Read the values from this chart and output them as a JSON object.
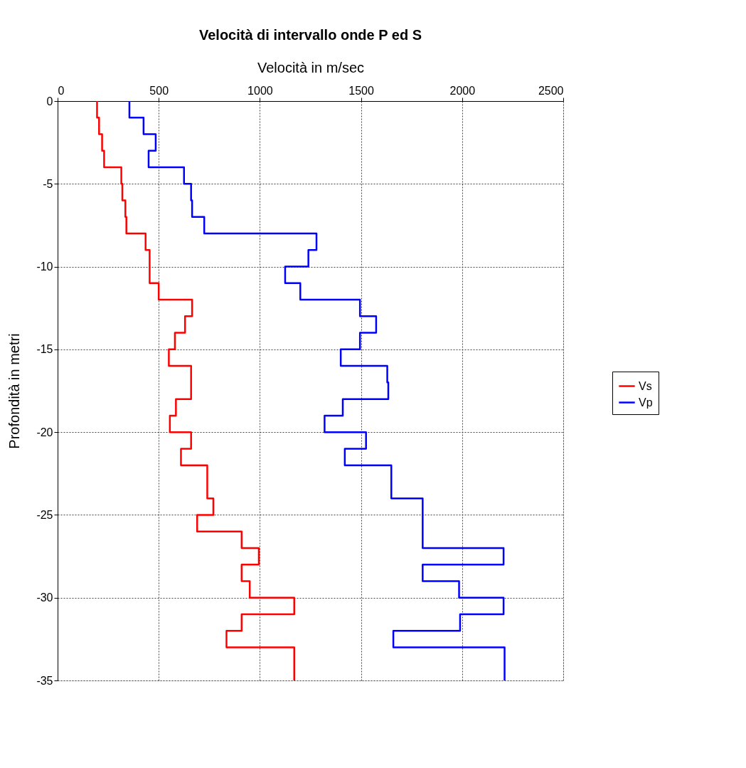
{
  "chart_data": {
    "type": "line",
    "title": "Velocità di intervallo onde P ed S",
    "xlabel": "Velocità in m/sec",
    "ylabel": "Profondità in metri",
    "xlim": [
      0,
      2500
    ],
    "xticks": [
      0,
      500,
      1000,
      1500,
      2000,
      2500
    ],
    "ylim": [
      -35,
      0
    ],
    "yticks": [
      0,
      -5,
      -10,
      -15,
      -20,
      -25,
      -30,
      -35
    ],
    "grid": true,
    "legend": "right",
    "marker": "none",
    "line_style": "solid",
    "series": [
      {
        "name": "Vs",
        "color": "#ff0000",
        "x": [
          195,
          195,
          205,
          205,
          220,
          220,
          230,
          230,
          315,
          315,
          320,
          320,
          335,
          335,
          340,
          340,
          435,
          435,
          455,
          455,
          455,
          455,
          500,
          500,
          665,
          665,
          630,
          630,
          580,
          580,
          550,
          550,
          660,
          660,
          660,
          660,
          585,
          585,
          555,
          555,
          660,
          660,
          610,
          610,
          740,
          740,
          740,
          740,
          770,
          770,
          690,
          690,
          910,
          910,
          995,
          995,
          910,
          910,
          950,
          950,
          1170,
          1170,
          910,
          910,
          835,
          835,
          1170,
          1170,
          1170,
          1170
        ],
        "values": [
          0,
          -1,
          -1,
          -2,
          -2,
          -3,
          -3,
          -4,
          -4,
          -5,
          -5,
          -6,
          -6,
          -7,
          -7,
          -8,
          -8,
          -9,
          -9,
          -10,
          -10,
          -11,
          -11,
          -12,
          -12,
          -13,
          -13,
          -14,
          -14,
          -15,
          -15,
          -16,
          -16,
          -17,
          -17,
          -18,
          -18,
          -19,
          -19,
          -20,
          -20,
          -21,
          -21,
          -22,
          -22,
          -23,
          -23,
          -24,
          -24,
          -25,
          -25,
          -26,
          -26,
          -27,
          -27,
          -28,
          -28,
          -29,
          -29,
          -30,
          -30,
          -31,
          -31,
          -32,
          -32,
          -33,
          -33,
          -34,
          -34,
          -35
        ]
      },
      {
        "name": "Vp",
        "color": "#0000ff",
        "x": [
          355,
          355,
          425,
          425,
          485,
          485,
          450,
          450,
          625,
          625,
          660,
          660,
          665,
          665,
          725,
          725,
          1280,
          1280,
          1240,
          1240,
          1125,
          1125,
          1200,
          1200,
          1495,
          1495,
          1575,
          1575,
          1495,
          1495,
          1400,
          1400,
          1630,
          1630,
          1635,
          1635,
          1410,
          1410,
          1320,
          1320,
          1525,
          1525,
          1420,
          1420,
          1650,
          1650,
          1650,
          1650,
          1805,
          1805,
          1805,
          1805,
          1805,
          1805,
          2205,
          2205,
          1805,
          1805,
          1985,
          1985,
          2205,
          2205,
          1990,
          1990,
          1660,
          1660,
          2210,
          2210,
          2210,
          2210
        ],
        "values": [
          0,
          -1,
          -1,
          -2,
          -2,
          -3,
          -3,
          -4,
          -4,
          -5,
          -5,
          -6,
          -6,
          -7,
          -7,
          -8,
          -8,
          -9,
          -9,
          -10,
          -10,
          -11,
          -11,
          -12,
          -12,
          -13,
          -13,
          -14,
          -14,
          -15,
          -15,
          -16,
          -16,
          -17,
          -17,
          -18,
          -18,
          -19,
          -19,
          -20,
          -20,
          -21,
          -21,
          -22,
          -22,
          -23,
          -23,
          -24,
          -24,
          -25,
          -25,
          -26,
          -26,
          -27,
          -27,
          -28,
          -28,
          -29,
          -29,
          -30,
          -30,
          -31,
          -31,
          -32,
          -32,
          -33,
          -33,
          -34,
          -34,
          -35
        ]
      }
    ]
  }
}
